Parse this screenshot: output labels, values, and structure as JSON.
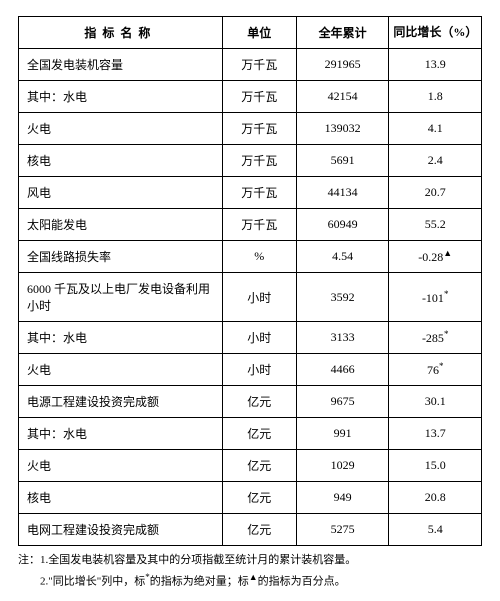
{
  "header": {
    "name": "指标名称",
    "unit": "单位",
    "total": "全年累计",
    "growth": "同比增长（%）"
  },
  "rows": [
    {
      "name": "全国发电装机容量",
      "unit": "万千瓦",
      "total": "291965",
      "growth": "13.9",
      "indent": 0
    },
    {
      "name": "其中：水电",
      "unit": "万千瓦",
      "total": "42154",
      "growth": "1.8",
      "indent": 1
    },
    {
      "name": "火电",
      "unit": "万千瓦",
      "total": "139032",
      "growth": "4.1",
      "indent": 2
    },
    {
      "name": "核电",
      "unit": "万千瓦",
      "total": "5691",
      "growth": "2.4",
      "indent": 2
    },
    {
      "name": "风电",
      "unit": "万千瓦",
      "total": "44134",
      "growth": "20.7",
      "indent": 2
    },
    {
      "name": "太阳能发电",
      "unit": "万千瓦",
      "total": "60949",
      "growth": "55.2",
      "indent": 2
    },
    {
      "name": "全国线路损失率",
      "unit": "%",
      "total": "4.54",
      "growth": "-0.28▲",
      "indent": 0
    },
    {
      "name": "6000 千瓦及以上电厂发电设备利用小时",
      "unit": "小时",
      "total": "3592",
      "growth": "-101*",
      "indent": 0
    },
    {
      "name": "其中：水电",
      "unit": "小时",
      "total": "3133",
      "growth": "-285*",
      "indent": 1
    },
    {
      "name": "火电",
      "unit": "小时",
      "total": "4466",
      "growth": "76*",
      "indent": 2
    },
    {
      "name": "电源工程建设投资完成额",
      "unit": "亿元",
      "total": "9675",
      "growth": "30.1",
      "indent": 0
    },
    {
      "name": "其中：水电",
      "unit": "亿元",
      "total": "991",
      "growth": "13.7",
      "indent": 1
    },
    {
      "name": "火电",
      "unit": "亿元",
      "total": "1029",
      "growth": "15.0",
      "indent": 2
    },
    {
      "name": "核电",
      "unit": "亿元",
      "total": "949",
      "growth": "20.8",
      "indent": 2
    },
    {
      "name": "电网工程建设投资完成额",
      "unit": "亿元",
      "total": "5275",
      "growth": "5.4",
      "indent": 0
    }
  ],
  "footnotes": {
    "label": "注：",
    "items": [
      "1.全国发电装机容量及其中的分项指截至统计月的累计装机容量。",
      "2.\"同比增长\"列中，标*的指标为绝对量；标▲的指标为百分点。"
    ]
  },
  "style": {
    "border_color": "#000000",
    "background_color": "#ffffff",
    "font_family": "SimSun",
    "base_fontsize": 12,
    "footnote_fontsize": 11,
    "col_widths_pct": [
      44,
      16,
      20,
      20
    ]
  }
}
